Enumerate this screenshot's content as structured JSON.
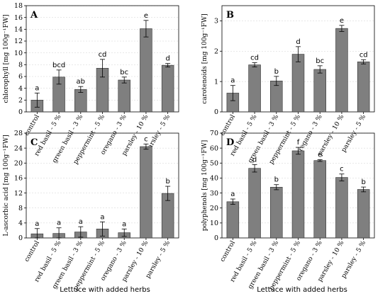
{
  "x_axis_title": "Lettuce with added herbs",
  "categories": [
    "control",
    "red basil - 5 %",
    "green basil - 3 %",
    "peppermint - 5 %",
    "oregano - 3 %",
    "parsley - 10 %",
    "parsley - 5 %"
  ],
  "bar_color": "#7f7f7f",
  "chart_data": [
    {
      "type": "bar",
      "panel": "A",
      "ylabel": "chlorophyll [mg 100g⁻¹FW]",
      "ylim": [
        0,
        18
      ],
      "yticks": [
        0,
        2,
        4,
        6,
        8,
        10,
        12,
        14,
        16,
        18
      ],
      "values": [
        2.0,
        5.9,
        3.8,
        7.4,
        5.4,
        14.1,
        7.9
      ],
      "errors": [
        1.2,
        1.2,
        0.5,
        1.5,
        0.5,
        1.4,
        0.3
      ],
      "letters": [
        "a",
        "bcd",
        "ab",
        "cd",
        "bc",
        "e",
        "d"
      ],
      "grid": true
    },
    {
      "type": "bar",
      "panel": "B",
      "ylabel": "carotenoids [mg 100g⁻¹FW]",
      "ylim": [
        0,
        3.5
      ],
      "yticks": [
        0,
        1,
        2,
        3
      ],
      "values": [
        0.62,
        1.55,
        1.02,
        1.9,
        1.4,
        2.75,
        1.65
      ],
      "errors": [
        0.25,
        0.07,
        0.15,
        0.25,
        0.12,
        0.1,
        0.07
      ],
      "letters": [
        "a",
        "cd",
        "b",
        "d",
        "bc",
        "e",
        "cd"
      ],
      "grid": true
    },
    {
      "type": "bar",
      "panel": "C",
      "ylabel": "L-ascorbic acid [mg 100g⁻¹FW]",
      "ylim": [
        0,
        28
      ],
      "yticks": [
        0,
        4,
        8,
        12,
        16,
        20,
        24,
        28
      ],
      "values": [
        1.1,
        1.2,
        1.6,
        2.4,
        1.4,
        24.4,
        11.9
      ],
      "errors": [
        1.4,
        1.5,
        1.4,
        1.9,
        1.0,
        0.7,
        1.9
      ],
      "letters": [
        "a",
        "a",
        "a",
        "a",
        "a",
        "c",
        "b"
      ],
      "grid": true
    },
    {
      "type": "bar",
      "panel": "D",
      "ylabel": "polyphenols [mg 100g⁻¹FW]",
      "ylim": [
        0,
        70
      ],
      "yticks": [
        0,
        10,
        20,
        30,
        40,
        50,
        60,
        70
      ],
      "values": [
        24.2,
        46.5,
        33.9,
        58.2,
        51.7,
        40.4,
        32.4
      ],
      "errors": [
        1.8,
        2.5,
        1.7,
        2.3,
        0.6,
        2.3,
        1.6
      ],
      "letters": [
        "a",
        "d",
        "b",
        "f",
        "e",
        "c",
        "b"
      ],
      "grid": true
    }
  ]
}
